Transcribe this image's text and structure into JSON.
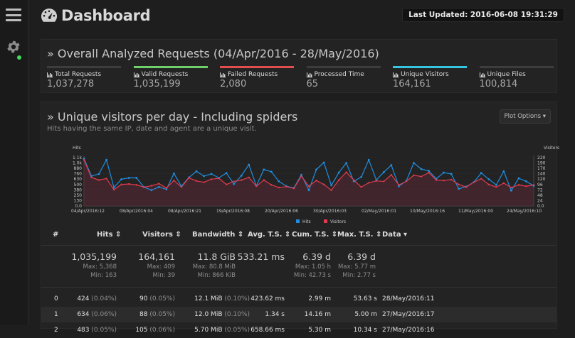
{
  "header": {
    "title": "Dashboard",
    "last_updated": "Last Updated: 2016-06-08 19:31:29"
  },
  "overview": {
    "title": "» Overall Analyzed Requests (04/Apr/2016 - 28/May/2016)",
    "metrics": [
      {
        "label": "Total Requests",
        "value": "1,037,278",
        "color": "#3d3d3d"
      },
      {
        "label": "Valid Requests",
        "value": "1,035,199",
        "color": "#6fd06b"
      },
      {
        "label": "Failed Requests",
        "value": "2,080",
        "color": "#e24d4d"
      },
      {
        "label": "Processed Time",
        "value": "65",
        "color": "#3d3d3d"
      },
      {
        "label": "Unique Visitors",
        "value": "164,161",
        "color": "#35c5e0"
      },
      {
        "label": "Unique Files",
        "value": "100,814",
        "color": "#3d3d3d"
      }
    ]
  },
  "visitors_panel": {
    "title": "» Unique visitors per day - Including spiders",
    "subtitle": "Hits having the same IP, date and agent are a unique visit.",
    "plot_options": "Plot Options ▾"
  },
  "chart_data": {
    "type": "line",
    "title": "Unique visitors per day - Including spiders",
    "left_axis_label": "Hits",
    "right_axis_label": "Visitors",
    "left_ticks": [
      "1.1k",
      "1.0k",
      "880",
      "760",
      "630",
      "500",
      "380",
      "250",
      "130",
      "0.0"
    ],
    "right_ticks": [
      "220",
      "190",
      "170",
      "140",
      "120",
      "96",
      "72",
      "48",
      "24",
      "0.0"
    ],
    "x_ticks": [
      "04/Apr/2016:12",
      "08/Apr/2016:04",
      "08/Apr/2016:21",
      "19/Apr/2016:08",
      "20/Apr/2016:06",
      "30/Apr/2016:03",
      "02/May/2016:01",
      "10/May/2016:16",
      "11/May/2016:00",
      "24/May/2016:10"
    ],
    "ylim_hits": [
      0,
      1150
    ],
    "ylim_visitors": [
      0,
      230
    ],
    "legend": [
      "Hits",
      "Visitors"
    ],
    "series": [
      {
        "name": "Hits",
        "color": "#1f8ee0",
        "values": [
          1080,
          680,
          730,
          1050,
          420,
          610,
          640,
          640,
          430,
          360,
          430,
          380,
          740,
          450,
          650,
          790,
          680,
          730,
          640,
          750,
          500,
          690,
          940,
          460,
          830,
          780,
          560,
          450,
          410,
          710,
          360,
          830,
          990,
          470,
          760,
          980,
          560,
          660,
          1050,
          590,
          770,
          930,
          450,
          570,
          980,
          840,
          800,
          620,
          760,
          730,
          390,
          440,
          540,
          750,
          610,
          480,
          790,
          350,
          630,
          560,
          460
        ]
      },
      {
        "name": "Visitors",
        "color": "#e23a4d",
        "values": [
          210,
          130,
          118,
          125,
          74,
          98,
          100,
          96,
          86,
          92,
          102,
          82,
          116,
          86,
          128,
          114,
          108,
          122,
          126,
          98,
          112,
          118,
          130,
          90,
          118,
          96,
          84,
          88,
          80,
          136,
          90,
          116,
          98,
          72,
          118,
          154,
          118,
          86,
          106,
          114,
          112,
          142,
          96,
          112,
          140,
          134,
          152,
          118,
          116,
          120,
          98,
          86,
          108,
          124,
          98,
          86,
          104,
          84,
          96,
          90,
          96
        ]
      }
    ]
  },
  "table": {
    "headers": {
      "num": "#",
      "hits": "Hits ⇕",
      "visitors": "Visitors ⇕",
      "bandwidth": "Bandwidth ⇕",
      "avg_ts": "Avg. T.S. ⇕",
      "cum_ts": "Cum. T.S. ⇕",
      "max_ts": "Max. T.S. ⇕",
      "data": "Data ▾"
    },
    "summary": {
      "hits": "1,035,199",
      "hits_max": "Max: 5,368",
      "hits_min": "Min: 163",
      "visitors": "164,161",
      "visitors_max": "Max: 409",
      "visitors_min": "Min: 39",
      "bandwidth": "11.8 GiB",
      "bandwidth_max": "Max: 80.8 MiB",
      "bandwidth_min": "Min: 866 KiB",
      "avg_ts": "533.21 ms",
      "cum_ts": "6.39 d",
      "cum_ts_max": "Max: 1.05 h",
      "cum_ts_min": "Min: 42.73 s",
      "max_ts": "6.39 d",
      "max_ts_max": "Max: 5.77 m",
      "max_ts_min": "Min: 2.77 s"
    },
    "rows": [
      {
        "num": "0",
        "hits": "424",
        "hits_pct": "(0.04%)",
        "visitors": "90",
        "visitors_pct": "(0.05%)",
        "bandwidth": "12.1 MiB",
        "bandwidth_pct": "(0.10%)",
        "avg_ts": "423.62 ms",
        "cum_ts": "2.99 m",
        "max_ts": "53.63 s",
        "data": "28/May/2016:11"
      },
      {
        "num": "1",
        "hits": "634",
        "hits_pct": "(0.06%)",
        "visitors": "88",
        "visitors_pct": "(0.05%)",
        "bandwidth": "12.0 MiB",
        "bandwidth_pct": "(0.10%)",
        "avg_ts": "1.34 s",
        "cum_ts": "14.16 m",
        "max_ts": "5.00 m",
        "data": "27/May/2016:17"
      },
      {
        "num": "2",
        "hits": "483",
        "hits_pct": "(0.05%)",
        "visitors": "105",
        "visitors_pct": "(0.06%)",
        "bandwidth": "5.70 MiB",
        "bandwidth_pct": "(0.05%)",
        "avg_ts": "658.66 ms",
        "cum_ts": "5.30 m",
        "max_ts": "10.34 s",
        "data": "27/May/2016:16"
      }
    ]
  }
}
